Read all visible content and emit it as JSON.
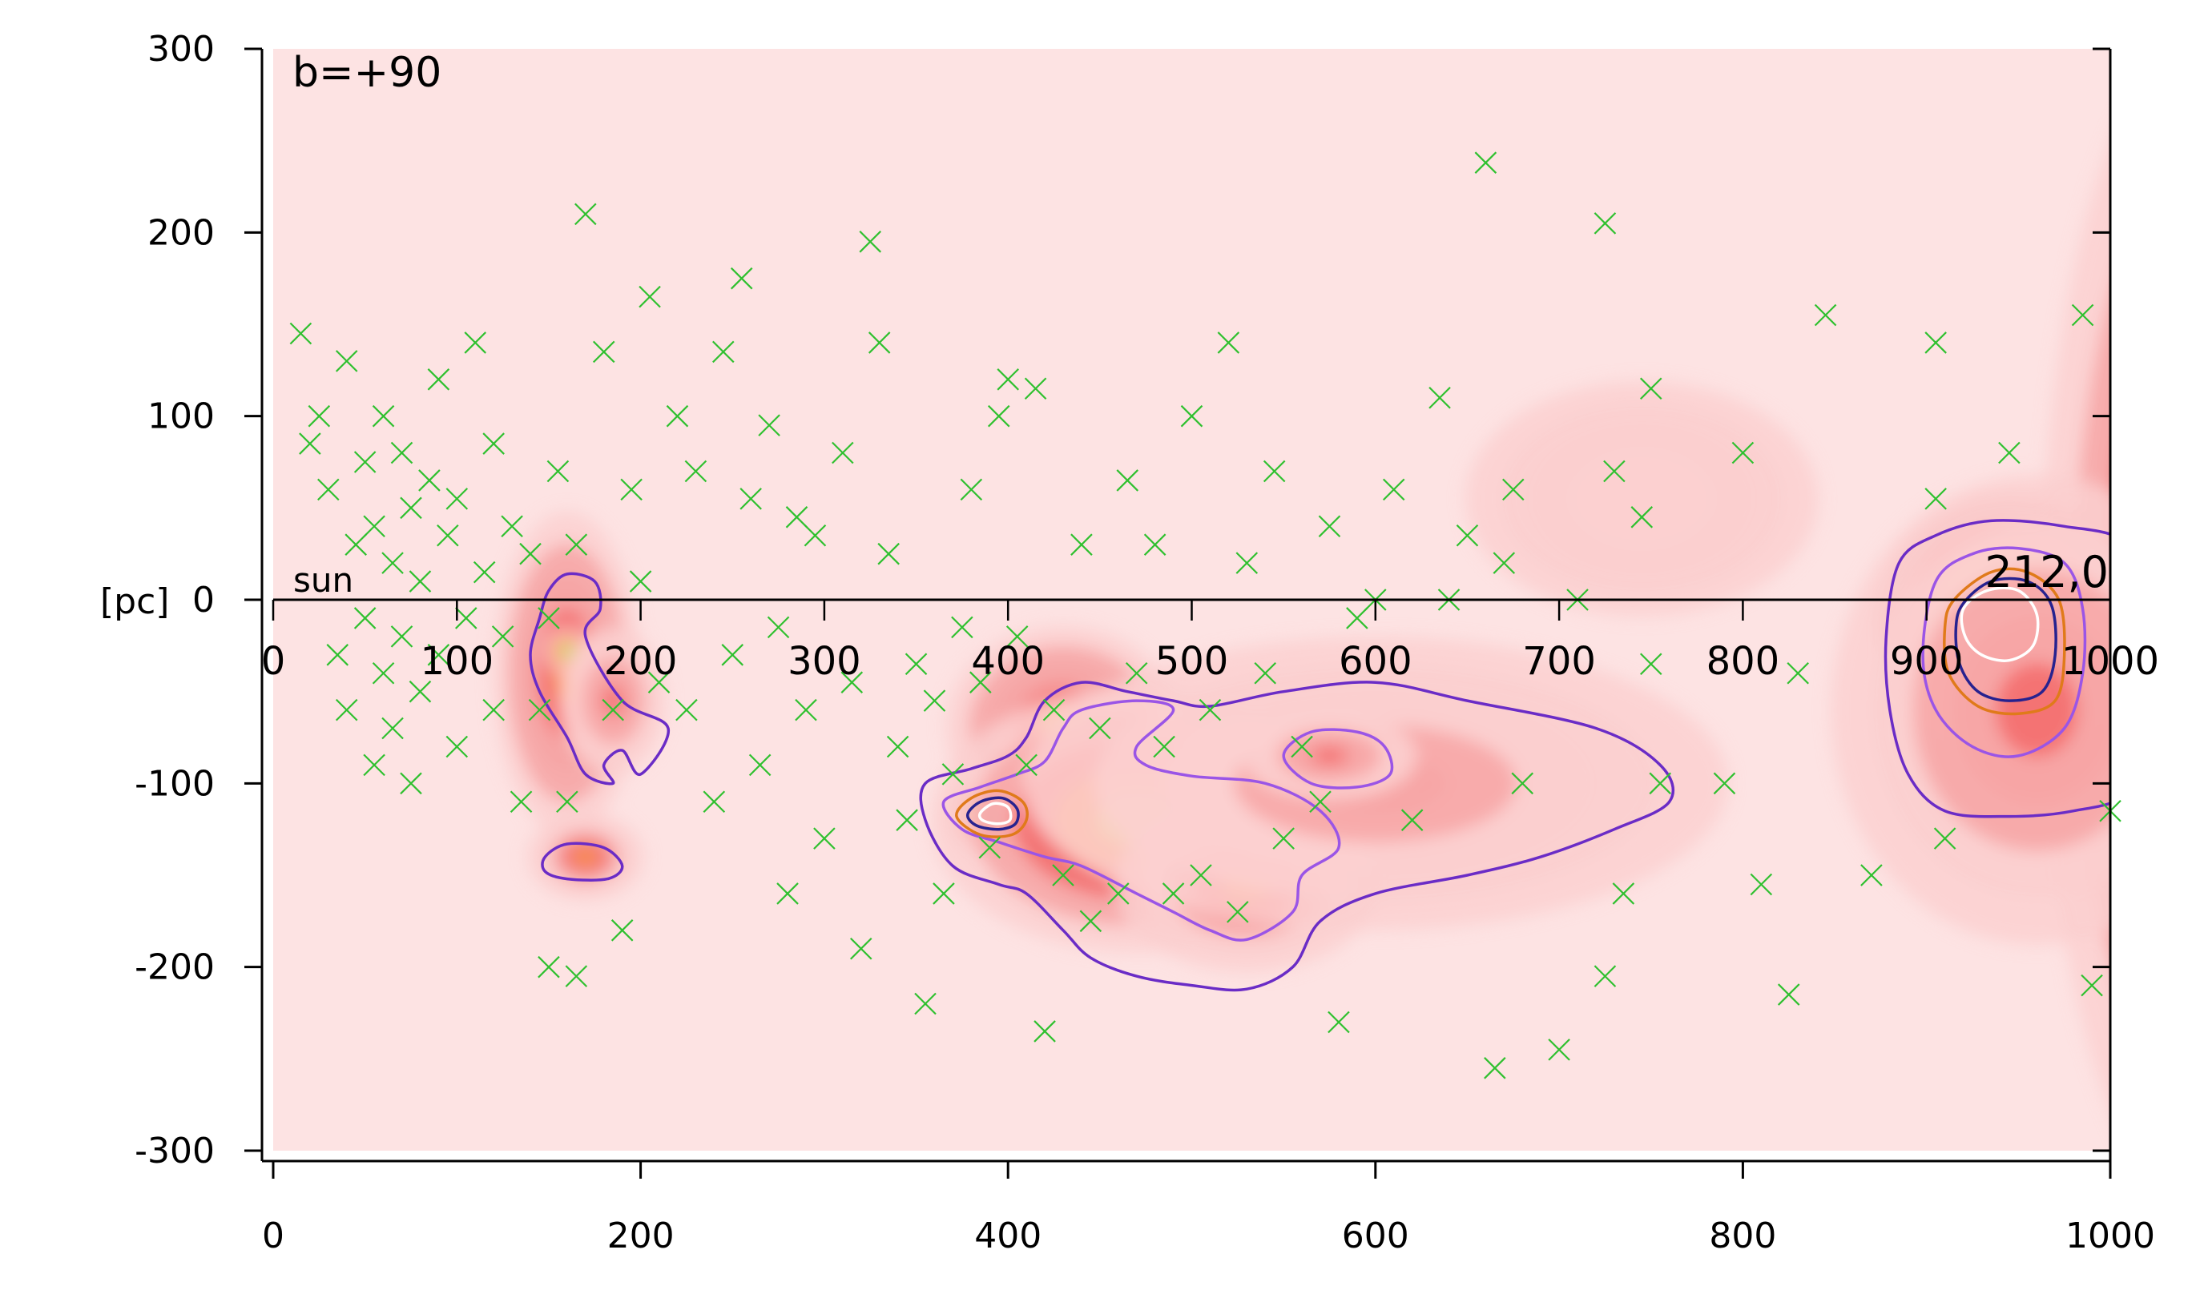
{
  "chart_data": {
    "type": "heatmap",
    "panel_label": "b=+90",
    "ylabel": "[pc]",
    "xlim": [
      0,
      1000
    ],
    "ylim": [
      -300,
      300
    ],
    "x_ticks": [
      0,
      200,
      400,
      600,
      800,
      1000
    ],
    "y_ticks": [
      -300,
      -200,
      -100,
      0,
      100,
      200,
      300
    ],
    "sightline": {
      "start_label": "sun",
      "end_label": "212,0",
      "y": 0,
      "ticks": [
        0,
        100,
        200,
        300,
        400,
        500,
        600,
        700,
        800,
        900,
        1000
      ]
    },
    "density_blobs": [
      {
        "x": 160,
        "y": -40,
        "sx": 25,
        "sy": 55,
        "level": 0.5
      },
      {
        "x": 160,
        "y": -28,
        "sx": 8,
        "sy": 8,
        "level": 0.75
      },
      {
        "x": 185,
        "y": -55,
        "sx": 18,
        "sy": 25,
        "level": 0.35
      },
      {
        "x": 170,
        "y": -140,
        "sx": 20,
        "sy": 15,
        "level": 0.45
      },
      {
        "x": 392,
        "y": -117,
        "sx": 15,
        "sy": 14,
        "level": 1.0
      },
      {
        "x": 430,
        "y": -70,
        "sx": 40,
        "sy": 35,
        "level": 0.55
      },
      {
        "x": 470,
        "y": -120,
        "sx": 70,
        "sy": 45,
        "level": 0.68
      },
      {
        "x": 530,
        "y": -155,
        "sx": 45,
        "sy": 30,
        "level": 0.45
      },
      {
        "x": 600,
        "y": -100,
        "sx": 120,
        "sy": 50,
        "level": 0.25
      },
      {
        "x": 575,
        "y": -85,
        "sx": 30,
        "sy": 15,
        "level": 0.42
      },
      {
        "x": 1050,
        "y": -15,
        "sx": 55,
        "sy": 200,
        "level": 0.6
      },
      {
        "x": 945,
        "y": -15,
        "sx": 45,
        "sy": 45,
        "level": 1.0
      },
      {
        "x": 960,
        "y": -60,
        "sx": 70,
        "sy": 80,
        "level": 0.35
      },
      {
        "x": 745,
        "y": 55,
        "sx": 60,
        "sy": 40,
        "level": 0.12
      }
    ],
    "contours": [
      {
        "color": "#6a2cc6",
        "points": [
          [
            150,
            5
          ],
          [
            160,
            14
          ],
          [
            175,
            10
          ],
          [
            178,
            -5
          ],
          [
            170,
            -20
          ],
          [
            190,
            -55
          ],
          [
            215,
            -70
          ],
          [
            200,
            -95
          ],
          [
            190,
            -82
          ],
          [
            180,
            -90
          ],
          [
            185,
            -100
          ],
          [
            170,
            -95
          ],
          [
            160,
            -75
          ],
          [
            145,
            -50
          ],
          [
            140,
            -30
          ],
          [
            145,
            -10
          ]
        ]
      },
      {
        "color": "#6a2cc6",
        "points": [
          [
            148,
            -140
          ],
          [
            160,
            -133
          ],
          [
            180,
            -135
          ],
          [
            190,
            -145
          ],
          [
            182,
            -152
          ],
          [
            160,
            -152
          ],
          [
            148,
            -148
          ]
        ]
      },
      {
        "color": "#6a2cc6",
        "points": [
          [
            355,
            -100
          ],
          [
            380,
            -92
          ],
          [
            400,
            -85
          ],
          [
            410,
            -75
          ],
          [
            420,
            -55
          ],
          [
            440,
            -45
          ],
          [
            465,
            -50
          ],
          [
            490,
            -55
          ],
          [
            510,
            -58
          ],
          [
            550,
            -50
          ],
          [
            600,
            -45
          ],
          [
            650,
            -55
          ],
          [
            720,
            -70
          ],
          [
            755,
            -90
          ],
          [
            760,
            -110
          ],
          [
            730,
            -125
          ],
          [
            690,
            -140
          ],
          [
            650,
            -150
          ],
          [
            600,
            -160
          ],
          [
            570,
            -175
          ],
          [
            555,
            -200
          ],
          [
            530,
            -212
          ],
          [
            500,
            -210
          ],
          [
            470,
            -205
          ],
          [
            445,
            -195
          ],
          [
            430,
            -180
          ],
          [
            410,
            -160
          ],
          [
            395,
            -155
          ],
          [
            370,
            -145
          ],
          [
            355,
            -120
          ]
        ]
      },
      {
        "color": "#9a55e6",
        "points": [
          [
            365,
            -110
          ],
          [
            385,
            -102
          ],
          [
            405,
            -95
          ],
          [
            420,
            -88
          ],
          [
            430,
            -70
          ],
          [
            440,
            -60
          ],
          [
            470,
            -55
          ],
          [
            490,
            -60
          ],
          [
            470,
            -80
          ],
          [
            475,
            -90
          ],
          [
            500,
            -96
          ],
          [
            540,
            -100
          ],
          [
            570,
            -115
          ],
          [
            580,
            -135
          ],
          [
            560,
            -150
          ],
          [
            555,
            -170
          ],
          [
            530,
            -185
          ],
          [
            510,
            -180
          ],
          [
            490,
            -170
          ],
          [
            470,
            -160
          ],
          [
            440,
            -145
          ],
          [
            420,
            -140
          ],
          [
            395,
            -132
          ],
          [
            375,
            -125
          ]
        ]
      },
      {
        "color": "#e07a1a",
        "points": [
          [
            372,
            -118
          ],
          [
            380,
            -108
          ],
          [
            395,
            -104
          ],
          [
            408,
            -110
          ],
          [
            410,
            -120
          ],
          [
            402,
            -128
          ],
          [
            385,
            -128
          ]
        ]
      },
      {
        "color": "#27228f",
        "points": [
          [
            378,
            -117
          ],
          [
            385,
            -110
          ],
          [
            397,
            -108
          ],
          [
            405,
            -114
          ],
          [
            404,
            -122
          ],
          [
            395,
            -125
          ],
          [
            383,
            -123
          ]
        ]
      },
      {
        "color": "#ffffff",
        "points": [
          [
            385,
            -116
          ],
          [
            392,
            -111
          ],
          [
            400,
            -113
          ],
          [
            401,
            -120
          ],
          [
            394,
            -122
          ],
          [
            386,
            -120
          ]
        ]
      },
      {
        "color": "#9a55e6",
        "points": [
          [
            550,
            -85
          ],
          [
            565,
            -72
          ],
          [
            590,
            -72
          ],
          [
            605,
            -80
          ],
          [
            608,
            -95
          ],
          [
            590,
            -102
          ],
          [
            565,
            -100
          ]
        ]
      },
      {
        "color": "#6a2cc6",
        "points": [
          [
            885,
            20
          ],
          [
            905,
            35
          ],
          [
            935,
            43
          ],
          [
            975,
            40
          ],
          [
            1010,
            30
          ],
          [
            1030,
            -10
          ],
          [
            1030,
            -70
          ],
          [
            1010,
            -105
          ],
          [
            980,
            -115
          ],
          [
            945,
            -118
          ],
          [
            910,
            -115
          ],
          [
            890,
            -95
          ],
          [
            880,
            -60
          ],
          [
            878,
            -20
          ]
        ]
      },
      {
        "color": "#9a55e6",
        "points": [
          [
            905,
            10
          ],
          [
            925,
            25
          ],
          [
            950,
            28
          ],
          [
            975,
            20
          ],
          [
            985,
            -5
          ],
          [
            985,
            -40
          ],
          [
            975,
            -70
          ],
          [
            950,
            -85
          ],
          [
            925,
            -80
          ],
          [
            905,
            -60
          ],
          [
            898,
            -30
          ]
        ]
      },
      {
        "color": "#e07a1a",
        "points": [
          [
            915,
            0
          ],
          [
            935,
            15
          ],
          [
            955,
            15
          ],
          [
            972,
            0
          ],
          [
            975,
            -30
          ],
          [
            970,
            -55
          ],
          [
            950,
            -62
          ],
          [
            928,
            -58
          ],
          [
            912,
            -40
          ],
          [
            910,
            -15
          ]
        ]
      },
      {
        "color": "#27228f",
        "points": [
          [
            920,
            -2
          ],
          [
            935,
            10
          ],
          [
            955,
            10
          ],
          [
            968,
            -3
          ],
          [
            970,
            -30
          ],
          [
            963,
            -50
          ],
          [
            945,
            -55
          ],
          [
            928,
            -50
          ],
          [
            918,
            -35
          ],
          [
            916,
            -15
          ]
        ]
      },
      {
        "color": "#ffffff",
        "points": [
          [
            920,
            -5
          ],
          [
            933,
            5
          ],
          [
            950,
            5
          ],
          [
            960,
            -8
          ],
          [
            958,
            -25
          ],
          [
            945,
            -33
          ],
          [
            930,
            -30
          ],
          [
            921,
            -20
          ]
        ]
      }
    ],
    "points": [
      [
        15,
        145
      ],
      [
        20,
        85
      ],
      [
        25,
        100
      ],
      [
        30,
        60
      ],
      [
        35,
        -30
      ],
      [
        40,
        130
      ],
      [
        40,
        -60
      ],
      [
        45,
        30
      ],
      [
        50,
        75
      ],
      [
        50,
        -10
      ],
      [
        55,
        40
      ],
      [
        55,
        -90
      ],
      [
        60,
        100
      ],
      [
        60,
        -40
      ],
      [
        65,
        20
      ],
      [
        65,
        -70
      ],
      [
        70,
        80
      ],
      [
        70,
        -20
      ],
      [
        75,
        50
      ],
      [
        75,
        -100
      ],
      [
        80,
        10
      ],
      [
        80,
        -50
      ],
      [
        85,
        65
      ],
      [
        90,
        -30
      ],
      [
        90,
        120
      ],
      [
        95,
        35
      ],
      [
        100,
        -80
      ],
      [
        100,
        55
      ],
      [
        105,
        -10
      ],
      [
        110,
        140
      ],
      [
        115,
        15
      ],
      [
        120,
        -60
      ],
      [
        120,
        85
      ],
      [
        125,
        -20
      ],
      [
        130,
        40
      ],
      [
        135,
        -110
      ],
      [
        140,
        25
      ],
      [
        145,
        -60
      ],
      [
        150,
        -10
      ],
      [
        150,
        -200
      ],
      [
        155,
        70
      ],
      [
        160,
        -110
      ],
      [
        165,
        30
      ],
      [
        165,
        -205
      ],
      [
        170,
        210
      ],
      [
        180,
        135
      ],
      [
        185,
        -60
      ],
      [
        190,
        -180
      ],
      [
        195,
        60
      ],
      [
        200,
        10
      ],
      [
        205,
        165
      ],
      [
        210,
        -45
      ],
      [
        220,
        100
      ],
      [
        225,
        -60
      ],
      [
        230,
        70
      ],
      [
        240,
        -110
      ],
      [
        245,
        135
      ],
      [
        250,
        -30
      ],
      [
        255,
        175
      ],
      [
        260,
        55
      ],
      [
        265,
        -90
      ],
      [
        270,
        95
      ],
      [
        275,
        -15
      ],
      [
        280,
        -160
      ],
      [
        285,
        45
      ],
      [
        290,
        -60
      ],
      [
        295,
        35
      ],
      [
        300,
        -130
      ],
      [
        310,
        80
      ],
      [
        315,
        -45
      ],
      [
        320,
        -190
      ],
      [
        325,
        195
      ],
      [
        330,
        140
      ],
      [
        335,
        25
      ],
      [
        340,
        -80
      ],
      [
        345,
        -120
      ],
      [
        350,
        -35
      ],
      [
        355,
        -220
      ],
      [
        360,
        -55
      ],
      [
        365,
        -160
      ],
      [
        370,
        -95
      ],
      [
        375,
        -15
      ],
      [
        380,
        60
      ],
      [
        385,
        -45
      ],
      [
        390,
        -135
      ],
      [
        395,
        100
      ],
      [
        400,
        120
      ],
      [
        405,
        -20
      ],
      [
        410,
        -90
      ],
      [
        415,
        115
      ],
      [
        420,
        -235
      ],
      [
        425,
        -60
      ],
      [
        430,
        -150
      ],
      [
        440,
        30
      ],
      [
        445,
        -175
      ],
      [
        450,
        -70
      ],
      [
        460,
        -160
      ],
      [
        465,
        65
      ],
      [
        470,
        -40
      ],
      [
        480,
        30
      ],
      [
        485,
        -80
      ],
      [
        490,
        -160
      ],
      [
        500,
        100
      ],
      [
        505,
        -150
      ],
      [
        510,
        -60
      ],
      [
        520,
        140
      ],
      [
        525,
        -170
      ],
      [
        530,
        20
      ],
      [
        540,
        -40
      ],
      [
        545,
        70
      ],
      [
        550,
        -130
      ],
      [
        560,
        -80
      ],
      [
        570,
        -110
      ],
      [
        575,
        40
      ],
      [
        580,
        -230
      ],
      [
        590,
        -10
      ],
      [
        600,
        0
      ],
      [
        610,
        60
      ],
      [
        620,
        -120
      ],
      [
        635,
        110
      ],
      [
        640,
        0
      ],
      [
        650,
        35
      ],
      [
        660,
        238
      ],
      [
        665,
        -255
      ],
      [
        670,
        20
      ],
      [
        675,
        60
      ],
      [
        680,
        -100
      ],
      [
        700,
        -245
      ],
      [
        710,
        0
      ],
      [
        725,
        205
      ],
      [
        725,
        -205
      ],
      [
        730,
        70
      ],
      [
        735,
        -160
      ],
      [
        745,
        45
      ],
      [
        750,
        -35
      ],
      [
        750,
        115
      ],
      [
        755,
        -100
      ],
      [
        790,
        -100
      ],
      [
        800,
        80
      ],
      [
        810,
        -155
      ],
      [
        825,
        -215
      ],
      [
        830,
        -40
      ],
      [
        845,
        155
      ],
      [
        870,
        -150
      ],
      [
        905,
        55
      ],
      [
        905,
        140
      ],
      [
        910,
        -130
      ],
      [
        945,
        80
      ],
      [
        985,
        155
      ],
      [
        990,
        -210
      ],
      [
        1000,
        -115
      ]
    ]
  }
}
